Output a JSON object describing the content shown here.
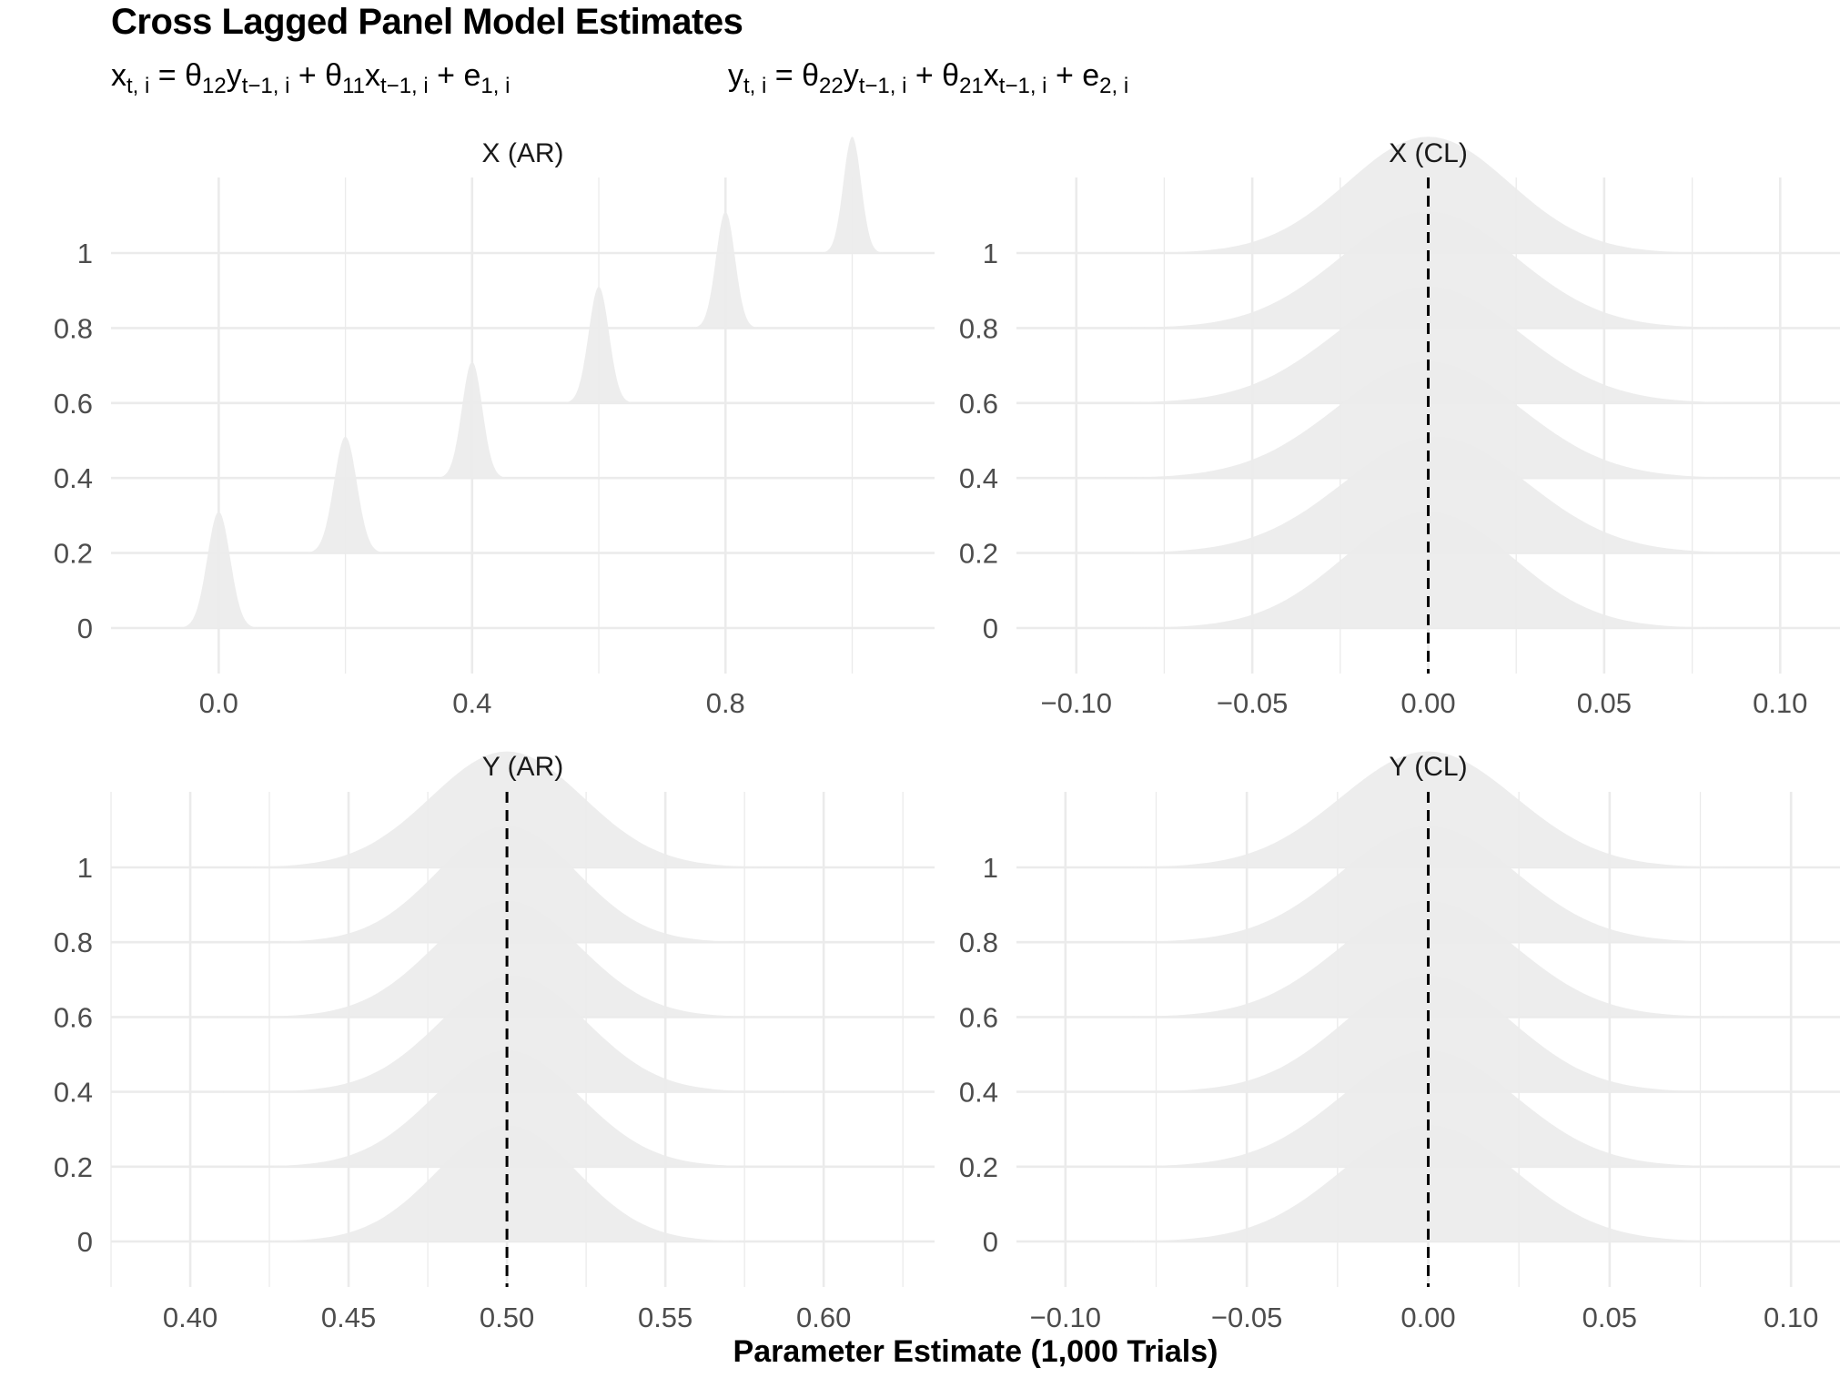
{
  "title": "Cross Lagged Panel Model Estimates",
  "equations": {
    "eq1": {
      "lhs": "x",
      "lhs_sub": "t, i",
      "c1": "θ",
      "c1_sub": "12",
      "v1": "y",
      "v1_sub": "t−1, i",
      "c2": "θ",
      "c2_sub": "11",
      "v2": "x",
      "v2_sub": "t−1, i",
      "err": "e",
      "err_sub": "1, i"
    },
    "eq2": {
      "lhs": "y",
      "lhs_sub": "t, i",
      "c1": "θ",
      "c1_sub": "22",
      "v1": "y",
      "v1_sub": "t−1, i",
      "c2": "θ",
      "c2_sub": "21",
      "v2": "x",
      "v2_sub": "t−1, i",
      "err": "e",
      "err_sub": "2, i"
    }
  },
  "x_axis_caption": "Parameter Estimate (1,000 Trials)",
  "colors": {
    "fill": "#ebebeb",
    "grid": "#ebebeb",
    "reference_line": "#000000",
    "text": "#4d4d4d"
  },
  "chart_data": [
    {
      "type": "area",
      "subtype": "ridgeline-density",
      "title": "X (AR)",
      "y_levels": [
        0,
        0.2,
        0.4,
        0.6,
        0.8,
        1
      ],
      "y_tick_labels": [
        "0",
        "0.2",
        "0.4",
        "0.6",
        "0.8",
        "1"
      ],
      "x_ticks": [
        0.0,
        0.4,
        0.8
      ],
      "x_tick_labels": [
        "0.0",
        "0.4",
        "0.8"
      ],
      "xlim": [
        -0.17,
        1.13
      ],
      "reference_line": null,
      "densities": [
        {
          "level": 0,
          "mean": 0.0,
          "sd": 0.018
        },
        {
          "level": 0.2,
          "mean": 0.2,
          "sd": 0.018
        },
        {
          "level": 0.4,
          "mean": 0.4,
          "sd": 0.016
        },
        {
          "level": 0.6,
          "mean": 0.6,
          "sd": 0.016
        },
        {
          "level": 0.8,
          "mean": 0.8,
          "sd": 0.015
        },
        {
          "level": 1,
          "mean": 1.0,
          "sd": 0.014
        }
      ]
    },
    {
      "type": "area",
      "subtype": "ridgeline-density",
      "title": "X (CL)",
      "y_levels": [
        0,
        0.2,
        0.4,
        0.6,
        0.8,
        1
      ],
      "y_tick_labels": [
        "0",
        "0.2",
        "0.4",
        "0.6",
        "0.8",
        "1"
      ],
      "x_ticks": [
        -0.1,
        -0.05,
        0.0,
        0.05,
        0.1
      ],
      "x_tick_labels": [
        "−0.10",
        "−0.05",
        "0.00",
        "0.05",
        "0.10"
      ],
      "xlim": [
        -0.117,
        0.117
      ],
      "reference_line": 0.0,
      "densities": [
        {
          "level": 0,
          "mean": 0.0,
          "sd": 0.024
        },
        {
          "level": 0.2,
          "mean": 0.002,
          "sd": 0.026
        },
        {
          "level": 0.4,
          "mean": 0.0,
          "sd": 0.026
        },
        {
          "level": 0.6,
          "mean": 0.0,
          "sd": 0.026
        },
        {
          "level": 0.8,
          "mean": 0.0,
          "sd": 0.025
        },
        {
          "level": 1,
          "mean": 0.0,
          "sd": 0.023
        }
      ]
    },
    {
      "type": "area",
      "subtype": "ridgeline-density",
      "title": "Y (AR)",
      "y_levels": [
        0,
        0.2,
        0.4,
        0.6,
        0.8,
        1
      ],
      "y_tick_labels": [
        "0",
        "0.2",
        "0.4",
        "0.6",
        "0.8",
        "1"
      ],
      "x_ticks": [
        0.4,
        0.45,
        0.5,
        0.55,
        0.6
      ],
      "x_tick_labels": [
        "0.40",
        "0.45",
        "0.50",
        "0.55",
        "0.60"
      ],
      "xlim": [
        0.375,
        0.635
      ],
      "reference_line": 0.5,
      "densities": [
        {
          "level": 0,
          "mean": 0.5,
          "sd": 0.022
        },
        {
          "level": 0.2,
          "mean": 0.5,
          "sd": 0.023
        },
        {
          "level": 0.4,
          "mean": 0.502,
          "sd": 0.023
        },
        {
          "level": 0.6,
          "mean": 0.5,
          "sd": 0.023
        },
        {
          "level": 0.8,
          "mean": 0.5,
          "sd": 0.022
        },
        {
          "level": 1,
          "mean": 0.5,
          "sd": 0.024
        }
      ]
    },
    {
      "type": "area",
      "subtype": "ridgeline-density",
      "title": "Y (CL)",
      "y_levels": [
        0,
        0.2,
        0.4,
        0.6,
        0.8,
        1
      ],
      "y_tick_labels": [
        "0",
        "0.2",
        "0.4",
        "0.6",
        "0.8",
        "1"
      ],
      "x_ticks": [
        -0.1,
        -0.05,
        0.0,
        0.05,
        0.1
      ],
      "x_tick_labels": [
        "−0.10",
        "−0.05",
        "0.00",
        "0.05",
        "0.10"
      ],
      "xlim": [
        -0.1135,
        0.1135
      ],
      "reference_line": 0.0,
      "densities": [
        {
          "level": 0,
          "mean": 0.0,
          "sd": 0.024
        },
        {
          "level": 0.2,
          "mean": 0.0,
          "sd": 0.024
        },
        {
          "level": 0.4,
          "mean": 0.0,
          "sd": 0.023
        },
        {
          "level": 0.6,
          "mean": 0.0,
          "sd": 0.024
        },
        {
          "level": 0.8,
          "mean": 0.0,
          "sd": 0.024
        },
        {
          "level": 1,
          "mean": 0.0,
          "sd": 0.024
        }
      ]
    }
  ]
}
